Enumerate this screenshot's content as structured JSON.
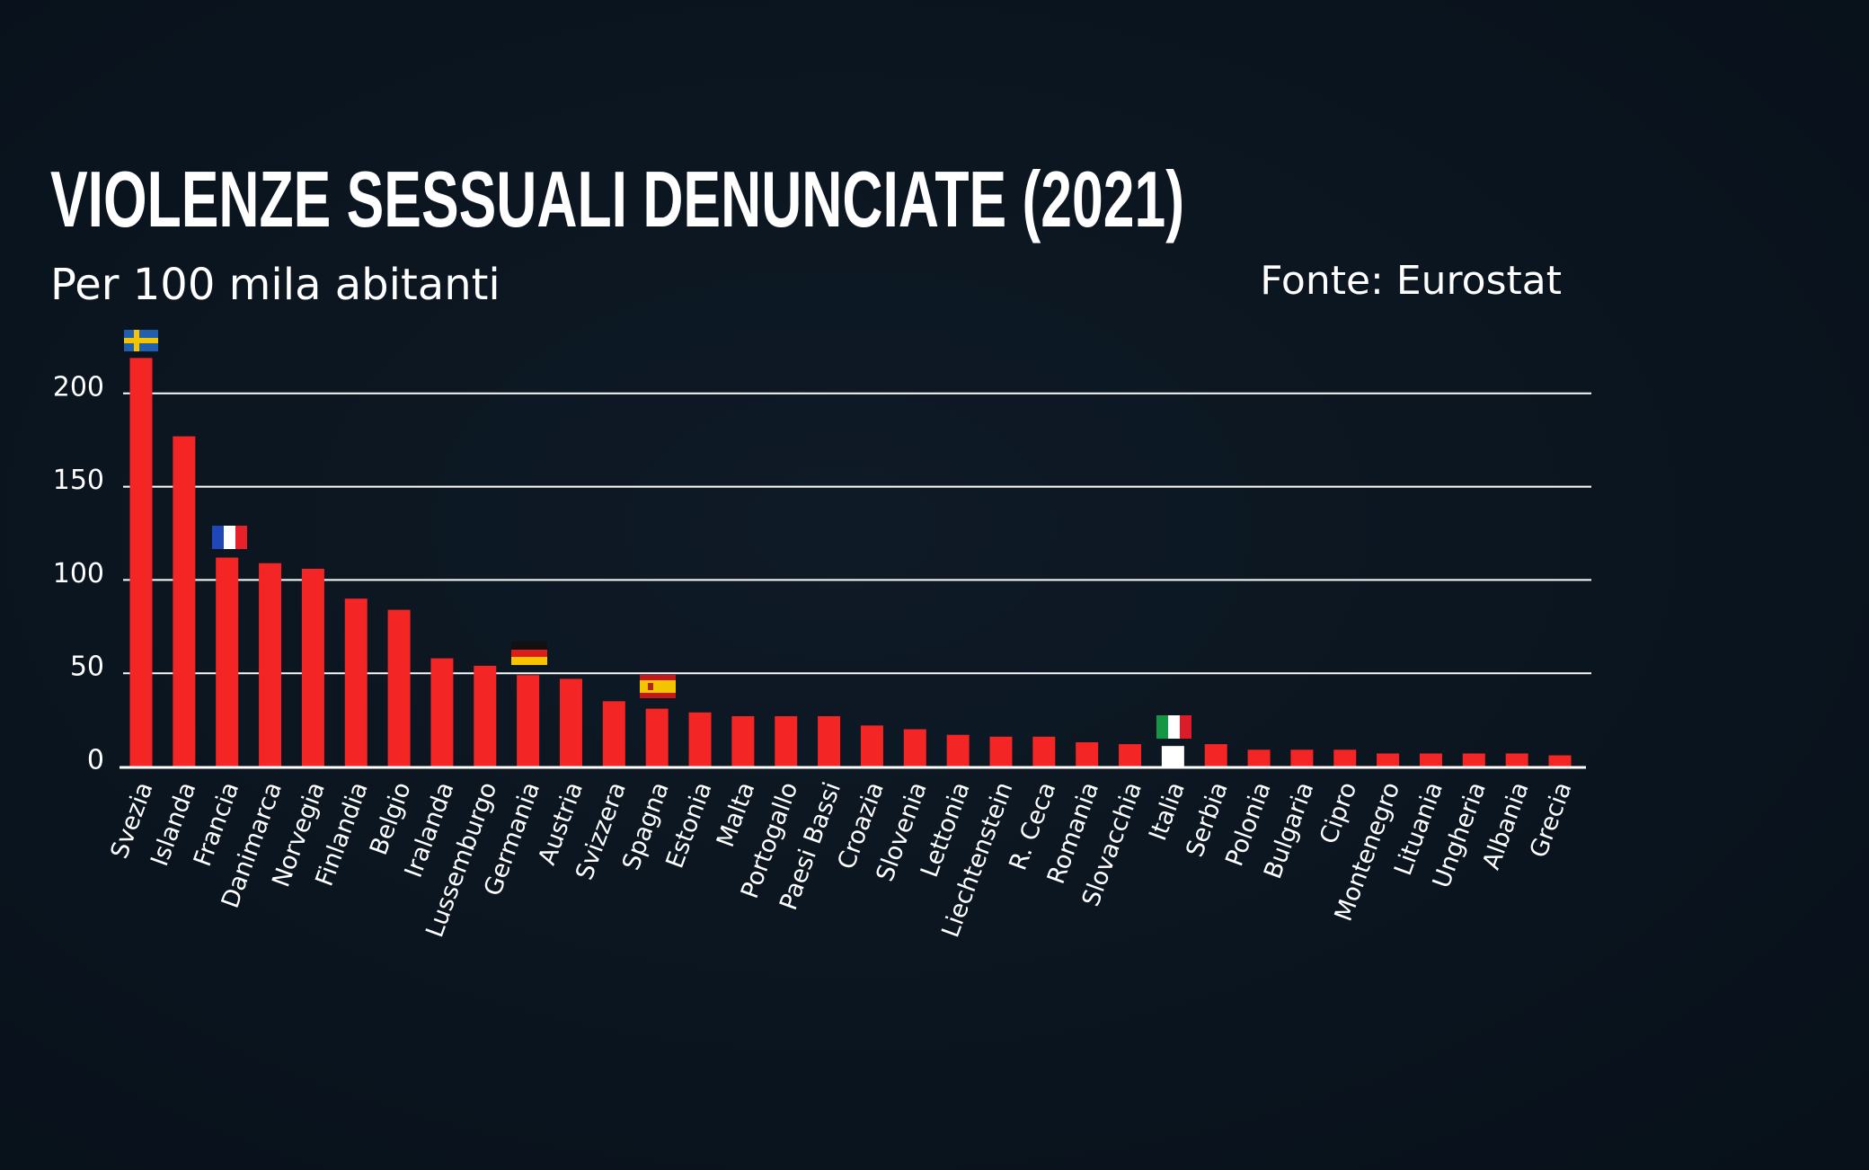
{
  "chart_data": {
    "type": "bar",
    "title": "VIOLENZE SESSUALI DENUNCIATE (2021)",
    "subtitle": "Per 100 mila abitanti",
    "source": "Fonte: Eurostat",
    "categories": [
      "Svezia",
      "Islanda",
      "Francia",
      "Danimarca",
      "Norvegia",
      "Finlandia",
      "Belgio",
      "Iralanda",
      "Lussemburgo",
      "Germania",
      "Austria",
      "Svizzera",
      "Spagna",
      "Estonia",
      "Malta",
      "Portogallo",
      "Paesi Bassi",
      "Croazia",
      "Slovenia",
      "Lettonia",
      "Liechtenstein",
      "R. Ceca",
      "Romania",
      "Slovacchia",
      "Italia",
      "Serbia",
      "Polonia",
      "Bulgaria",
      "Cipro",
      "Montenegro",
      "Lituania",
      "Ungheria",
      "Albania",
      "Grecia"
    ],
    "values": [
      219,
      177,
      112,
      109,
      106,
      90,
      84,
      58,
      54,
      49,
      47,
      35,
      31,
      29,
      27,
      27,
      27,
      22,
      20,
      17,
      16,
      16,
      13,
      12,
      11,
      12,
      9,
      9,
      9,
      7,
      7,
      7,
      7,
      6
    ],
    "colors": [
      "#f42525",
      "#f42525",
      "#f42525",
      "#f42525",
      "#f42525",
      "#f42525",
      "#f42525",
      "#f42525",
      "#f42525",
      "#f42525",
      "#f42525",
      "#f42525",
      "#f42525",
      "#f42525",
      "#f42525",
      "#f42525",
      "#f42525",
      "#f42525",
      "#f42525",
      "#f42525",
      "#f42525",
      "#f42525",
      "#f42525",
      "#f42525",
      "#ffffff",
      "#f42525",
      "#f42525",
      "#f42525",
      "#f42525",
      "#f42525",
      "#f42525",
      "#f42525",
      "#f42525",
      "#f42525"
    ],
    "ylim": [
      0,
      230
    ],
    "yticks": [
      0,
      50,
      100,
      150,
      200
    ],
    "grid": true
  }
}
